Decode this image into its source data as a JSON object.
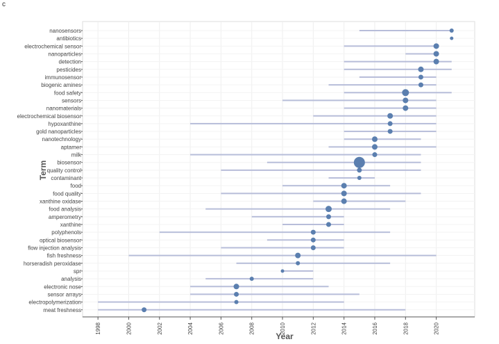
{
  "panel_label": "c",
  "chart_data": {
    "type": "scatter",
    "xlabel": "Year",
    "ylabel": "Term",
    "xlim": [
      1997,
      2022.5
    ],
    "x_ticks": [
      1998,
      2000,
      2002,
      2004,
      2006,
      2008,
      2010,
      2012,
      2014,
      2016,
      2018,
      2020
    ],
    "grid": true,
    "colors": {
      "bar": "#b7bdd9",
      "point": "#5b7faf"
    },
    "terms": [
      {
        "term": "nanosensors",
        "start": 2015,
        "end": 2021,
        "median": 2021,
        "size": 3
      },
      {
        "term": "antibiotics",
        "start": 2021,
        "end": 2021,
        "median": 2021,
        "size": 2.5
      },
      {
        "term": "electrochemical sensor",
        "start": 2014,
        "end": 2020,
        "median": 2020,
        "size": 4
      },
      {
        "term": "nanoparticles",
        "start": 2018,
        "end": 2020,
        "median": 2020,
        "size": 4
      },
      {
        "term": "detection",
        "start": 2014,
        "end": 2021,
        "median": 2020,
        "size": 4
      },
      {
        "term": "pesticides",
        "start": 2014,
        "end": 2021,
        "median": 2019,
        "size": 4
      },
      {
        "term": "immunosensor",
        "start": 2015,
        "end": 2020,
        "median": 2019,
        "size": 3.5
      },
      {
        "term": "biogenic amines",
        "start": 2013,
        "end": 2020,
        "median": 2019,
        "size": 3.5
      },
      {
        "term": "food safety",
        "start": 2014,
        "end": 2021,
        "median": 2018,
        "size": 5
      },
      {
        "term": "sensors",
        "start": 2010,
        "end": 2020,
        "median": 2018,
        "size": 4
      },
      {
        "term": "nanomaterials",
        "start": 2014,
        "end": 2020,
        "median": 2018,
        "size": 4
      },
      {
        "term": "electrochemical biosensor",
        "start": 2012,
        "end": 2020,
        "median": 2017,
        "size": 4
      },
      {
        "term": "hypoxanthine",
        "start": 2004,
        "end": 2020,
        "median": 2017,
        "size": 3.5
      },
      {
        "term": "gold nanoparticles",
        "start": 2014,
        "end": 2020,
        "median": 2017,
        "size": 3.5
      },
      {
        "term": "nanotechnology",
        "start": 2014,
        "end": 2019,
        "median": 2016,
        "size": 4
      },
      {
        "term": "aptamer",
        "start": 2013,
        "end": 2020,
        "median": 2016,
        "size": 4
      },
      {
        "term": "milk",
        "start": 2004,
        "end": 2019,
        "median": 2016,
        "size": 3.5
      },
      {
        "term": "biosensor",
        "start": 2009,
        "end": 2019,
        "median": 2015,
        "size": 8
      },
      {
        "term": "quality control",
        "start": 2006,
        "end": 2019,
        "median": 2015,
        "size": 3.5
      },
      {
        "term": "contaminant",
        "start": 2013,
        "end": 2016,
        "median": 2015,
        "size": 3
      },
      {
        "term": "food",
        "start": 2010,
        "end": 2017,
        "median": 2014,
        "size": 4
      },
      {
        "term": "food quality",
        "start": 2006,
        "end": 2019,
        "median": 2014,
        "size": 4
      },
      {
        "term": "xanthine oxidase",
        "start": 2012,
        "end": 2018,
        "median": 2014,
        "size": 4
      },
      {
        "term": "food analysis",
        "start": 2005,
        "end": 2017,
        "median": 2013,
        "size": 4.5
      },
      {
        "term": "amperometry",
        "start": 2008,
        "end": 2014,
        "median": 2013,
        "size": 3.5
      },
      {
        "term": "xanthine",
        "start": 2010,
        "end": 2014,
        "median": 2013,
        "size": 3.5
      },
      {
        "term": "polyphenols",
        "start": 2002,
        "end": 2017,
        "median": 2012,
        "size": 3.5
      },
      {
        "term": "optical biosensor",
        "start": 2009,
        "end": 2014,
        "median": 2012,
        "size": 3.5
      },
      {
        "term": "flow injection analysis",
        "start": 2006,
        "end": 2014,
        "median": 2012,
        "size": 3.5
      },
      {
        "term": "fish freshness",
        "start": 2000,
        "end": 2020,
        "median": 2011,
        "size": 4
      },
      {
        "term": "horseradish peroxidase",
        "start": 2007,
        "end": 2017,
        "median": 2011,
        "size": 3
      },
      {
        "term": "spr",
        "start": 2010,
        "end": 2012,
        "median": 2010,
        "size": 2.5
      },
      {
        "term": "analysis",
        "start": 2005,
        "end": 2012,
        "median": 2008,
        "size": 3
      },
      {
        "term": "electronic nose",
        "start": 2004,
        "end": 2013,
        "median": 2007,
        "size": 4
      },
      {
        "term": "sensor arrays",
        "start": 2004,
        "end": 2015,
        "median": 2007,
        "size": 3.5
      },
      {
        "term": "electropolymerization",
        "start": 1998,
        "end": 2014,
        "median": 2007,
        "size": 3
      },
      {
        "term": "meat freshness",
        "start": 1998,
        "end": 2018,
        "median": 2001,
        "size": 3.5
      }
    ]
  }
}
